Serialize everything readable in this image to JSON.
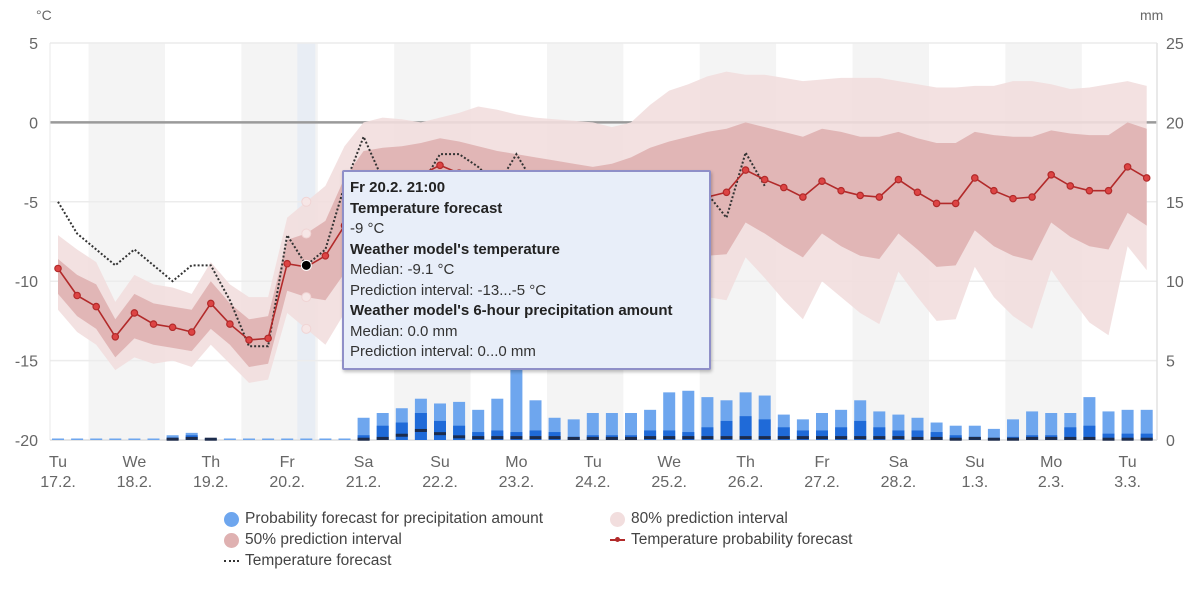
{
  "chart_data": {
    "type": "line",
    "left_axis": {
      "unit": "°C",
      "ticks": [
        "5",
        "0",
        "-5",
        "-10",
        "-15",
        "-20"
      ],
      "range": [
        -20,
        5
      ]
    },
    "right_axis": {
      "unit": "mm",
      "ticks": [
        "25",
        "20",
        "15",
        "10",
        "5",
        "0"
      ],
      "range": [
        0,
        25
      ]
    },
    "x_labels": [
      {
        "day": "Tu",
        "date": "17.2."
      },
      {
        "day": "We",
        "date": "18.2."
      },
      {
        "day": "Th",
        "date": "19.2."
      },
      {
        "day": "Fr",
        "date": "20.2."
      },
      {
        "day": "Sa",
        "date": "21.2."
      },
      {
        "day": "Su",
        "date": "22.2."
      },
      {
        "day": "Mo",
        "date": "23.2."
      },
      {
        "day": "Tu",
        "date": "24.2."
      },
      {
        "day": "We",
        "date": "25.2."
      },
      {
        "day": "Th",
        "date": "26.2."
      },
      {
        "day": "Fr",
        "date": "27.2."
      },
      {
        "day": "Sa",
        "date": "28.2."
      },
      {
        "day": "Su",
        "date": "1.3."
      },
      {
        "day": "Mo",
        "date": "2.3."
      },
      {
        "day": "Tu",
        "date": "3.3."
      }
    ],
    "step": "6 hours",
    "temperature_probability_forecast": [
      -9.2,
      -10.9,
      -11.6,
      -13.5,
      -12.0,
      -12.7,
      -12.9,
      -13.2,
      -11.4,
      -12.7,
      -13.7,
      -13.6,
      -8.9,
      -9.1,
      -8.4,
      -6.5,
      -4.2,
      -3.8,
      -4.0,
      -3.3,
      -2.7,
      -3.2,
      -3.6,
      -3.9,
      -3.4,
      -4.2,
      -4.8,
      -5.0,
      -4.4,
      -4.8,
      -5.0,
      -4.6,
      -4.8,
      -5.0,
      -4.7,
      -4.4,
      -3.0,
      -3.6,
      -4.1,
      -4.7,
      -3.7,
      -4.3,
      -4.6,
      -4.7,
      -3.6,
      -4.4,
      -5.1,
      -5.1,
      -3.5,
      -4.3,
      -4.8,
      -4.7,
      -3.3,
      -4.0,
      -4.3,
      -4.3,
      -2.8,
      -3.5
    ],
    "interval_50_low": [
      -10.8,
      -12.2,
      -13.0,
      -14.8,
      -13.6,
      -14.0,
      -14.2,
      -14.4,
      -13.0,
      -14.0,
      -15.4,
      -15.2,
      -10.6,
      -11.0,
      -11.2,
      -9.5,
      -7.0,
      -6.8,
      -7.2,
      -6.5,
      -6.0,
      -6.6,
      -7.2,
      -7.6,
      -6.8,
      -7.8,
      -8.4,
      -8.6,
      -7.8,
      -8.4,
      -8.8,
      -8.2,
      -8.6,
      -8.8,
      -8.4,
      -8.3,
      -6.3,
      -7.0,
      -7.8,
      -8.5,
      -7.0,
      -7.8,
      -8.4,
      -8.6,
      -7.0,
      -8.0,
      -9.1,
      -9.0,
      -6.8,
      -7.8,
      -8.4,
      -8.7,
      -6.3,
      -7.2,
      -7.8,
      -8.0,
      -5.7,
      -6.5
    ],
    "interval_50_high": [
      -8.6,
      -9.6,
      -10.2,
      -12.4,
      -10.8,
      -11.4,
      -11.6,
      -11.8,
      -10.0,
      -11.4,
      -12.4,
      -12.2,
      -7.4,
      -7.0,
      -6.2,
      -3.5,
      -1.8,
      -1.6,
      -1.5,
      -1.3,
      -1.0,
      -1.2,
      -1.5,
      -1.8,
      -2.0,
      -2.2,
      -2.4,
      -2.6,
      -2.8,
      -2.6,
      -2.2,
      -1.6,
      -1.2,
      -0.9,
      -0.6,
      -0.4,
      0.0,
      -0.3,
      -0.6,
      -0.9,
      -0.4,
      -0.6,
      -0.9,
      -0.9,
      -0.6,
      -1.0,
      -1.3,
      -1.3,
      -0.6,
      -0.8,
      -0.9,
      -0.9,
      -0.5,
      -0.7,
      -0.8,
      -0.8,
      0.0,
      -0.4
    ],
    "interval_80_low": [
      -11.8,
      -13.2,
      -14.0,
      -15.6,
      -14.8,
      -15.2,
      -15.0,
      -15.4,
      -14.0,
      -15.2,
      -16.4,
      -16.2,
      -12.0,
      -13.0,
      -14.0,
      -12.0,
      -10.0,
      -9.5,
      -10.0,
      -9.0,
      -8.8,
      -9.4,
      -10.2,
      -10.6,
      -9.6,
      -10.8,
      -11.6,
      -11.8,
      -10.6,
      -11.4,
      -11.6,
      -10.8,
      -11.4,
      -11.8,
      -11.0,
      -11.2,
      -8.5,
      -9.8,
      -11.2,
      -12.4,
      -10.0,
      -11.0,
      -12.0,
      -12.7,
      -9.4,
      -11.0,
      -12.5,
      -12.4,
      -9.1,
      -11.0,
      -12.2,
      -13.0,
      -9.3,
      -11.0,
      -12.6,
      -13.4,
      -7.8,
      -9.3
    ],
    "interval_80_high": [
      -7.1,
      -8.0,
      -8.8,
      -11.3,
      -9.6,
      -10.2,
      -10.4,
      -10.8,
      -8.8,
      -10.2,
      -11.0,
      -11.0,
      -6.0,
      -5.0,
      -4.0,
      -1.5,
      0.0,
      0.3,
      0.2,
      0.0,
      0.3,
      0.6,
      1.0,
      0.8,
      0.5,
      0.3,
      0.2,
      0.1,
      0.0,
      -0.3,
      0.0,
      1.1,
      2.0,
      2.4,
      2.9,
      3.2,
      3.0,
      3.0,
      2.8,
      2.6,
      2.7,
      2.8,
      2.8,
      2.8,
      2.6,
      2.4,
      2.2,
      2.2,
      2.3,
      2.3,
      2.6,
      2.6,
      2.4,
      2.1,
      2.2,
      2.4,
      2.6,
      2.3
    ],
    "temperature_forecast": [
      -5,
      -7,
      -8,
      -9,
      -8,
      -9,
      -10,
      -9,
      -9,
      -11.2,
      -14.1,
      -14.1,
      -7.1,
      -9,
      -8,
      -4,
      -0.9,
      -3.6,
      -4.5,
      -4,
      -2,
      -2,
      -2.8,
      -4,
      -2,
      -4,
      -4.5,
      -5,
      -4.5,
      -5,
      -5,
      -4.5,
      -5,
      -5,
      -4.5,
      -6,
      -1.9,
      -4
    ],
    "precipitation_upper_mm": [
      0.05,
      0.05,
      0.05,
      0.05,
      0.05,
      0.05,
      0.3,
      0.45,
      0.1,
      0.05,
      0.05,
      0.05,
      0.05,
      0.0,
      0.05,
      0.05,
      1.4,
      1.7,
      2.0,
      2.6,
      2.3,
      2.4,
      1.9,
      2.6,
      4.5,
      2.5,
      1.4,
      1.3,
      1.7,
      1.7,
      1.7,
      1.9,
      3.0,
      3.1,
      2.7,
      2.5,
      3.0,
      2.8,
      1.6,
      1.3,
      1.7,
      1.9,
      2.5,
      1.8,
      1.6,
      1.4,
      1.1,
      0.9,
      0.9,
      0.7,
      1.3,
      1.8,
      1.7,
      1.7,
      2.7,
      1.8,
      1.9,
      1.9
    ],
    "precipitation_middle_mm": [
      0,
      0,
      0,
      0,
      0,
      0,
      0.15,
      0.3,
      0.05,
      0,
      0,
      0,
      0,
      0,
      0,
      0,
      0.3,
      0.9,
      1.1,
      1.7,
      1.2,
      0.9,
      0.5,
      0.6,
      0.5,
      0.6,
      0.5,
      0.2,
      0.3,
      0.3,
      0.3,
      0.6,
      0.6,
      0.5,
      0.8,
      1.2,
      1.5,
      1.3,
      0.8,
      0.6,
      0.6,
      0.8,
      1.2,
      0.8,
      0.6,
      0.6,
      0.5,
      0.3,
      0.2,
      0.1,
      0.2,
      0.3,
      0.3,
      0.8,
      0.9,
      0.4,
      0.4,
      0.4
    ],
    "precipitation_marker_mm": [
      0,
      0,
      0,
      0,
      0,
      0,
      0.05,
      0.1,
      0.05,
      0,
      0,
      0,
      0,
      0,
      0,
      0,
      0.05,
      0.1,
      0.3,
      0.6,
      0.4,
      0.2,
      0.15,
      0.15,
      0.15,
      0.15,
      0.15,
      0.1,
      0.1,
      0.1,
      0.1,
      0.15,
      0.15,
      0.15,
      0.15,
      0.15,
      0.15,
      0.15,
      0.15,
      0.15,
      0.15,
      0.15,
      0.15,
      0.15,
      0.15,
      0.1,
      0.1,
      0.05,
      0.1,
      0.05,
      0.05,
      0.1,
      0.1,
      0.1,
      0.1,
      0.05,
      0.05,
      0.05
    ],
    "selected_index": 13,
    "grid": true,
    "legend_position": "bottom"
  },
  "colors": {
    "interval_80": "#f2dede",
    "interval_50": "#dfb1b1",
    "median": "#b22a2a",
    "forecast": "#333333",
    "precip_light": "#6ea6ee",
    "precip_mid": "#1f6ad8",
    "precip_dark": "#1d2c4c",
    "day_stripe": "#f4f4f4",
    "highlight": "#e8edf4"
  },
  "tooltip": {
    "time": "Fr 20.2. 21:00",
    "forecast_title": "Temperature forecast",
    "forecast_value": "-9 °C",
    "model_temp_title": "Weather model's temperature",
    "model_temp_median": "Median: -9.1 °C",
    "model_temp_interval": "Prediction interval: -13...-5 °C",
    "precip_title": "Weather model's 6-hour precipitation amount",
    "precip_median": "Median: 0.0 mm",
    "precip_interval": "Prediction interval: 0...0 mm"
  },
  "legend": {
    "precip": "Probability forecast for precipitation amount",
    "interval_80": "80% prediction interval",
    "interval_50": "50% prediction interval",
    "median": "Temperature probability forecast",
    "forecast": "Temperature forecast"
  }
}
